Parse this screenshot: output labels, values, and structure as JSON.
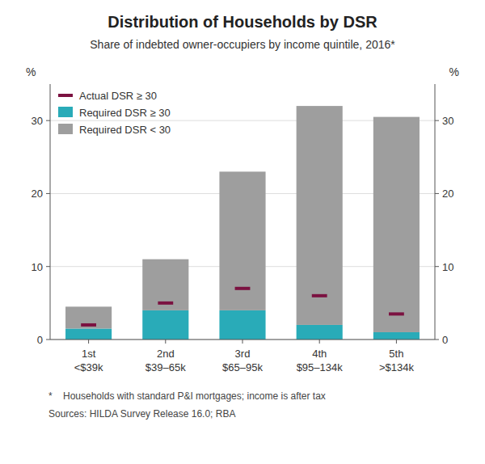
{
  "chart_data": {
    "type": "bar",
    "title": "Distribution of Households by DSR",
    "subtitle": "Share of indebted owner-occupiers by income quintile, 2016*",
    "annotations": [
      "*    Households with standard P&I mortgages; income is after tax",
      "Sources: HILDA Survey Release 16.0; RBA"
    ],
    "ylabel": "%",
    "y2label": "%",
    "categories": [
      "1st\n<$39k",
      "2nd\n$39–65k",
      "3rd\n$65–95k",
      "4th\n$95–134k",
      "5th\n>$134k"
    ],
    "series": [
      {
        "name": "Actual DSR ≥ 30",
        "type": "scatter",
        "marker": "dash",
        "color": "#7B1241",
        "values": [
          2.0,
          5.0,
          7.0,
          6.0,
          3.5
        ]
      },
      {
        "name": "Required DSR ≥ 30",
        "type": "bar",
        "color": "#29ABB8",
        "values": [
          1.5,
          4.0,
          4.0,
          2.0,
          1.0
        ]
      },
      {
        "name": "Required DSR < 30",
        "type": "bar",
        "color": "#9E9E9E",
        "values": [
          3.0,
          7.0,
          19.0,
          30.0,
          29.5
        ]
      }
    ],
    "stacked": true,
    "ylim": [
      0,
      35
    ],
    "yticks": [
      0,
      10,
      20,
      30
    ],
    "y2lim": [
      0,
      35
    ],
    "y2ticks": [
      0,
      10,
      20,
      30
    ],
    "grid": true,
    "legend": "upper left"
  }
}
